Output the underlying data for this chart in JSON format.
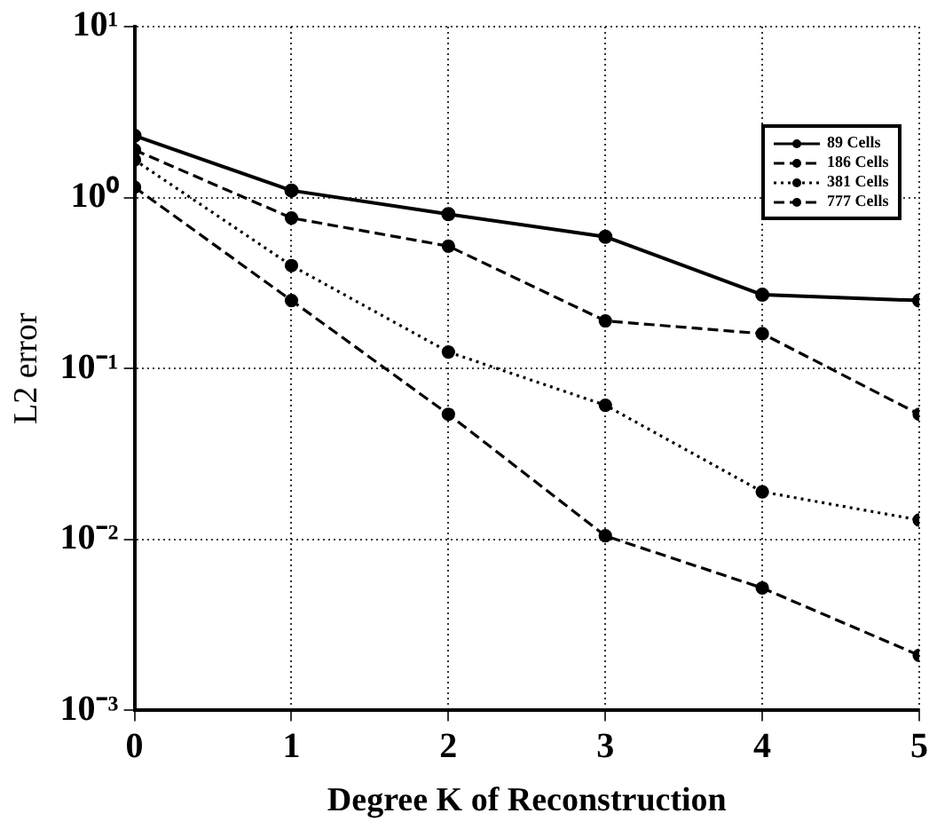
{
  "chart_data": {
    "type": "line",
    "xlabel": "Degree K of Reconstruction",
    "ylabel": "L2 error",
    "x": [
      0,
      1,
      2,
      3,
      4,
      5
    ],
    "series": [
      {
        "name": "89 Cells",
        "color": "#000000",
        "line_style": "solid",
        "values": [
          2.3,
          1.1,
          0.8,
          0.59,
          0.27,
          0.25
        ]
      },
      {
        "name": "186 Cells",
        "color": "#000000",
        "line_style": "dashed",
        "values": [
          1.9,
          0.76,
          0.52,
          0.19,
          0.16,
          0.054
        ]
      },
      {
        "name": "381 Cells",
        "color": "#000000",
        "line_style": "dotted",
        "values": [
          1.66,
          0.4,
          0.125,
          0.061,
          0.019,
          0.013
        ]
      },
      {
        "name": "777 Cells",
        "color": "#000000",
        "line_style": "dashed",
        "values": [
          1.15,
          0.25,
          0.054,
          0.0105,
          0.0052,
          0.0021
        ]
      }
    ],
    "log": "y",
    "xlim": [
      0,
      5
    ],
    "ylim": [
      0.001,
      10
    ],
    "xticks": [
      0,
      1,
      2,
      3,
      4,
      5
    ],
    "yticks": [
      {
        "value": 0.001,
        "label": "10⁻³"
      },
      {
        "value": 0.01,
        "label": "10⁻²"
      },
      {
        "value": 0.1,
        "label": "10⁻¹"
      },
      {
        "value": 1,
        "label": "10⁰"
      },
      {
        "value": 10,
        "label": "10¹"
      }
    ],
    "grid": true,
    "legend": "top right",
    "marker": "circle"
  }
}
